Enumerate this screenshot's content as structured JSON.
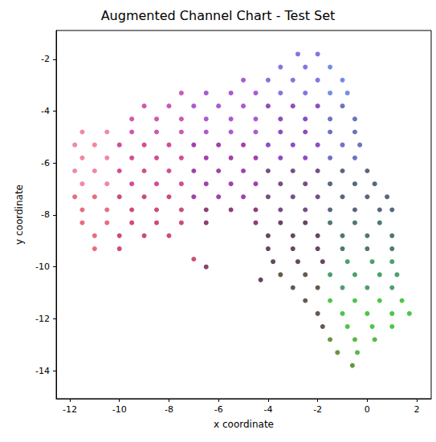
{
  "chart_data": {
    "type": "scatter",
    "title": "Augmented Channel Chart - Test Set",
    "x_label": "x coordinate",
    "y_label": "y coordinate",
    "marker": "circle",
    "grid": false,
    "xlim": [
      -12.55,
      2.58
    ],
    "xticks": [
      -12,
      -10,
      -8,
      -6,
      -4,
      -2,
      0,
      2
    ],
    "ylim": [
      -15.08,
      -0.89
    ],
    "yticks": [
      -14,
      -12,
      -10,
      -8,
      -6,
      -4,
      -2
    ],
    "x": [
      -2.8,
      -2.0,
      -3.5,
      -2.5,
      -1.5,
      -5.0,
      -4.0,
      -3.0,
      -2.0,
      -1.0,
      -7.5,
      -6.5,
      -5.5,
      -4.5,
      -3.5,
      -2.5,
      -1.5,
      -0.8,
      -9.0,
      -8.0,
      -7.0,
      -6.0,
      -5.0,
      -4.0,
      -3.0,
      -2.0,
      -1.0,
      -9.5,
      -8.5,
      -7.5,
      -6.5,
      -5.5,
      -4.5,
      -3.5,
      -2.5,
      -1.5,
      -0.5,
      -11.5,
      -10.5,
      -9.5,
      -8.5,
      -7.5,
      -6.5,
      -5.5,
      -4.5,
      -3.5,
      -2.5,
      -1.5,
      -0.5,
      -11.8,
      -11.0,
      -10.0,
      -9.0,
      -8.0,
      -7.0,
      -6.0,
      -5.0,
      -4.0,
      -3.0,
      -2.0,
      -1.0,
      -0.3,
      -11.5,
      -10.5,
      -9.5,
      -8.5,
      -7.5,
      -6.5,
      -5.5,
      -4.5,
      -3.5,
      -2.5,
      -1.5,
      -0.5,
      -11.8,
      -11.0,
      -10.0,
      -9.0,
      -8.0,
      -7.0,
      -6.0,
      -5.0,
      -4.0,
      -3.0,
      -2.0,
      -1.0,
      0.0,
      -11.5,
      -10.5,
      -9.5,
      -8.5,
      -7.5,
      -6.5,
      -5.5,
      -4.5,
      -3.5,
      -2.5,
      -1.5,
      -0.5,
      0.3,
      -11.8,
      -11.0,
      -10.0,
      -9.0,
      -8.0,
      -7.0,
      -6.0,
      -5.0,
      -4.0,
      -3.0,
      -2.0,
      -1.0,
      0.0,
      0.8,
      -11.5,
      -10.5,
      -9.5,
      -8.5,
      -7.5,
      -6.5,
      -5.5,
      -4.5,
      -3.5,
      -2.5,
      -1.5,
      -0.5,
      0.5,
      1.0,
      -11.5,
      -10.5,
      -9.5,
      -8.5,
      -7.5,
      -6.5,
      -4.5,
      -3.5,
      -2.5,
      -1.5,
      -0.5,
      0.5,
      -11.0,
      -10.0,
      -9.0,
      -8.0,
      -4.0,
      -3.0,
      -2.0,
      -1.0,
      0.0,
      1.0,
      -11.0,
      -10.0,
      -4.0,
      -3.0,
      -2.0,
      -1.0,
      0.0,
      1.0,
      -3.8,
      -2.8,
      -1.8,
      -0.8,
      0.2,
      1.0,
      -3.5,
      -2.5,
      -1.5,
      -0.5,
      0.5,
      1.2,
      -3.0,
      -2.0,
      -1.0,
      0.0,
      1.0,
      -2.5,
      -1.5,
      -0.5,
      0.5,
      1.4,
      -2.0,
      -1.0,
      0.0,
      1.0,
      1.7,
      -1.8,
      -0.8,
      0.2,
      1.0,
      -1.5,
      -0.5,
      0.3,
      -1.2,
      -0.4,
      -0.6,
      -6.5,
      -4.3,
      -7.0
    ],
    "values": [
      -1.8,
      -1.8,
      -2.3,
      -2.3,
      -2.3,
      -2.8,
      -2.8,
      -2.8,
      -2.8,
      -2.8,
      -3.3,
      -3.3,
      -3.3,
      -3.3,
      -3.3,
      -3.3,
      -3.3,
      -3.3,
      -3.8,
      -3.8,
      -3.8,
      -3.8,
      -3.8,
      -3.8,
      -3.8,
      -3.8,
      -3.8,
      -4.3,
      -4.3,
      -4.3,
      -4.3,
      -4.3,
      -4.3,
      -4.3,
      -4.3,
      -4.3,
      -4.3,
      -4.8,
      -4.8,
      -4.8,
      -4.8,
      -4.8,
      -4.8,
      -4.8,
      -4.8,
      -4.8,
      -4.8,
      -4.8,
      -4.8,
      -5.3,
      -5.3,
      -5.3,
      -5.3,
      -5.3,
      -5.3,
      -5.3,
      -5.3,
      -5.3,
      -5.3,
      -5.3,
      -5.3,
      -5.3,
      -5.8,
      -5.8,
      -5.8,
      -5.8,
      -5.8,
      -5.8,
      -5.8,
      -5.8,
      -5.8,
      -5.8,
      -5.8,
      -5.8,
      -6.3,
      -6.3,
      -6.3,
      -6.3,
      -6.3,
      -6.3,
      -6.3,
      -6.3,
      -6.3,
      -6.3,
      -6.3,
      -6.3,
      -6.3,
      -6.8,
      -6.8,
      -6.8,
      -6.8,
      -6.8,
      -6.8,
      -6.8,
      -6.8,
      -6.8,
      -6.8,
      -6.8,
      -6.8,
      -6.8,
      -7.3,
      -7.3,
      -7.3,
      -7.3,
      -7.3,
      -7.3,
      -7.3,
      -7.3,
      -7.3,
      -7.3,
      -7.3,
      -7.3,
      -7.3,
      -7.3,
      -7.8,
      -7.8,
      -7.8,
      -7.8,
      -7.8,
      -7.8,
      -7.8,
      -7.8,
      -7.8,
      -7.8,
      -7.8,
      -7.8,
      -7.8,
      -7.8,
      -8.3,
      -8.3,
      -8.3,
      -8.3,
      -8.3,
      -8.3,
      -8.3,
      -8.3,
      -8.3,
      -8.3,
      -8.3,
      -8.3,
      -8.8,
      -8.8,
      -8.8,
      -8.8,
      -8.8,
      -8.8,
      -8.8,
      -8.8,
      -8.8,
      -8.8,
      -9.3,
      -9.3,
      -9.3,
      -9.3,
      -9.3,
      -9.3,
      -9.3,
      -9.3,
      -9.8,
      -9.8,
      -9.8,
      -9.8,
      -9.8,
      -9.8,
      -10.3,
      -10.3,
      -10.3,
      -10.3,
      -10.3,
      -10.3,
      -10.8,
      -10.8,
      -10.8,
      -10.8,
      -10.8,
      -11.3,
      -11.3,
      -11.3,
      -11.3,
      -11.3,
      -11.8,
      -11.8,
      -11.8,
      -11.8,
      -11.8,
      -12.3,
      -12.3,
      -12.3,
      -12.3,
      -12.8,
      -12.8,
      -12.8,
      -13.3,
      -13.3,
      -13.8,
      -10.0,
      -10.5,
      -9.7
    ],
    "colors": [
      "#6a50d8",
      "#6a50d8",
      "#6a50d8",
      "#6a50d8",
      "#5070e0",
      "#9830c8",
      "#6a50d8",
      "#6a50d8",
      "#6a50d8",
      "#5070e0",
      "#c030a0",
      "#9830c8",
      "#9830c8",
      "#9830c8",
      "#6a50d8",
      "#6a50d8",
      "#5070e0",
      "#5070e0",
      "#c030a0",
      "#c030a0",
      "#9830c8",
      "#9830c8",
      "#9830c8",
      "#7020b0",
      "#7020b0",
      "#7020b0",
      "#4850b0",
      "#c030a0",
      "#c030a0",
      "#c030a0",
      "#9830c8",
      "#9830c8",
      "#9830c8",
      "#7020b0",
      "#7020b0",
      "#4850b0",
      "#4850b0",
      "#ee6a88",
      "#ee6a88",
      "#c030a0",
      "#c030a0",
      "#c030a0",
      "#9830c8",
      "#9830c8",
      "#9830c8",
      "#7020b0",
      "#7020b0",
      "#4850b0",
      "#4850b0",
      "#ee6a88",
      "#ee6a88",
      "#c82078",
      "#c82078",
      "#c82078",
      "#8c1095",
      "#8c1095",
      "#8c1095",
      "#7020b0",
      "#7020b0",
      "#7020b0",
      "#4850b0",
      "#4850b0",
      "#ee6a88",
      "#ee6a88",
      "#c82078",
      "#c82078",
      "#c82078",
      "#8c1095",
      "#8c1095",
      "#8c1095",
      "#7020b0",
      "#7020b0",
      "#4850b0",
      "#4850b0",
      "#ee6a88",
      "#ee6a88",
      "#c82078",
      "#c82078",
      "#c82078",
      "#8c1095",
      "#8c1095",
      "#8c1095",
      "#582068",
      "#582068",
      "#582068",
      "#304060",
      "#304060",
      "#ee6a88",
      "#ee6a88",
      "#c82078",
      "#c82078",
      "#c82078",
      "#8c1095",
      "#8c1095",
      "#8c1095",
      "#582068",
      "#582068",
      "#304060",
      "#304060",
      "#304060",
      "#e04860",
      "#e04860",
      "#c02050",
      "#c02050",
      "#c02050",
      "#8c1095",
      "#8c1095",
      "#8c1095",
      "#582068",
      "#582068",
      "#582068",
      "#304060",
      "#304060",
      "#304060",
      "#e04860",
      "#e04860",
      "#c02050",
      "#c02050",
      "#c02050",
      "#701050",
      "#701050",
      "#701050",
      "#582068",
      "#582068",
      "#304060",
      "#304060",
      "#304060",
      "#304060",
      "#e04860",
      "#e04860",
      "#c02050",
      "#c02050",
      "#c02050",
      "#701050",
      "#701050",
      "#401838",
      "#401838",
      "#205850",
      "#205850",
      "#205850",
      "#e04860",
      "#c02050",
      "#c02050",
      "#c02050",
      "#401838",
      "#401838",
      "#401838",
      "#205850",
      "#205850",
      "#205850",
      "#e04860",
      "#c02050",
      "#401838",
      "#401838",
      "#401838",
      "#205850",
      "#205850",
      "#205850",
      "#401838",
      "#401838",
      "#401838",
      "#208848",
      "#208848",
      "#208848",
      "#403020",
      "#403020",
      "#208848",
      "#208848",
      "#208848",
      "#208848",
      "#403020",
      "#403020",
      "#208848",
      "#208848",
      "#208848",
      "#403020",
      "#20b818",
      "#20b818",
      "#20b818",
      "#20b818",
      "#403020",
      "#20b818",
      "#20b818",
      "#20b818",
      "#20b818",
      "#403020",
      "#20b818",
      "#20b818",
      "#20b818",
      "#407a10",
      "#30a818",
      "#30a818",
      "#407a10",
      "#30a818",
      "#407a10",
      "#701050",
      "#401838",
      "#c02050"
    ]
  }
}
